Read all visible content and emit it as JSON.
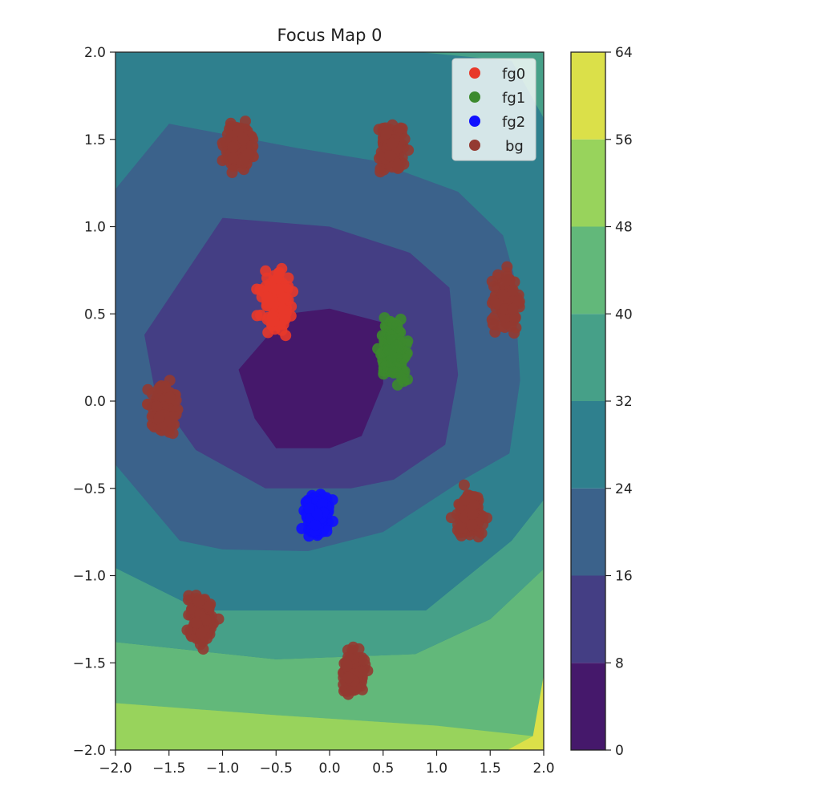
{
  "chart_data": {
    "type": "contour-scatter",
    "title": "Focus Map 0",
    "xlim": [
      -2.0,
      2.0
    ],
    "ylim": [
      -2.0,
      2.0
    ],
    "xticks": [
      -2.0,
      -1.5,
      -1.0,
      -0.5,
      0.0,
      0.5,
      1.0,
      1.5,
      2.0
    ],
    "yticks": [
      -2.0,
      -1.5,
      -1.0,
      -0.5,
      0.0,
      0.5,
      1.0,
      1.5,
      2.0
    ],
    "xtick_labels": [
      "−2.0",
      "−1.5",
      "−1.0",
      "−0.5",
      "0.0",
      "0.5",
      "1.0",
      "1.5",
      "2.0"
    ],
    "ytick_labels": [
      "−2.0",
      "−1.5",
      "−1.0",
      "−0.5",
      "0.0",
      "0.5",
      "1.0",
      "1.5",
      "2.0"
    ],
    "grid": false,
    "legend_position": "top-right",
    "series": [
      {
        "name": "fg0",
        "color": "#e8392a",
        "clusters": [
          {
            "x": -0.5,
            "y": 0.57,
            "sx": 0.08,
            "sy": 0.09
          }
        ]
      },
      {
        "name": "fg1",
        "color": "#3c8a2e",
        "clusters": [
          {
            "x": 0.6,
            "y": 0.28,
            "sx": 0.07,
            "sy": 0.09
          }
        ]
      },
      {
        "name": "fg2",
        "color": "#1010ff",
        "clusters": [
          {
            "x": -0.12,
            "y": -0.66,
            "sx": 0.07,
            "sy": 0.07
          }
        ]
      },
      {
        "name": "bg",
        "color": "#943a31",
        "clusters": [
          {
            "x": -0.85,
            "y": 1.47,
            "sx": 0.07,
            "sy": 0.08
          },
          {
            "x": 0.58,
            "y": 1.45,
            "sx": 0.07,
            "sy": 0.08
          },
          {
            "x": 1.65,
            "y": 0.57,
            "sx": 0.07,
            "sy": 0.08
          },
          {
            "x": -1.55,
            "y": -0.05,
            "sx": 0.07,
            "sy": 0.08
          },
          {
            "x": 1.3,
            "y": -0.65,
            "sx": 0.07,
            "sy": 0.07
          },
          {
            "x": -1.2,
            "y": -1.25,
            "sx": 0.07,
            "sy": 0.08
          },
          {
            "x": 0.22,
            "y": -1.55,
            "sx": 0.06,
            "sy": 0.07
          }
        ]
      }
    ],
    "contour": {
      "levels": [
        0,
        8,
        16,
        24,
        32,
        40,
        48,
        56,
        64
      ],
      "colors": [
        "#45186b",
        "#443e84",
        "#3b628b",
        "#2f808e",
        "#46a088",
        "#62b87a",
        "#98d35c",
        "#dbe049"
      ]
    },
    "colorbar": {
      "ticks": [
        0,
        8,
        16,
        24,
        32,
        40,
        48,
        56,
        64
      ],
      "tick_labels": [
        "0",
        "8",
        "16",
        "24",
        "32",
        "40",
        "48",
        "56",
        "64"
      ]
    }
  }
}
